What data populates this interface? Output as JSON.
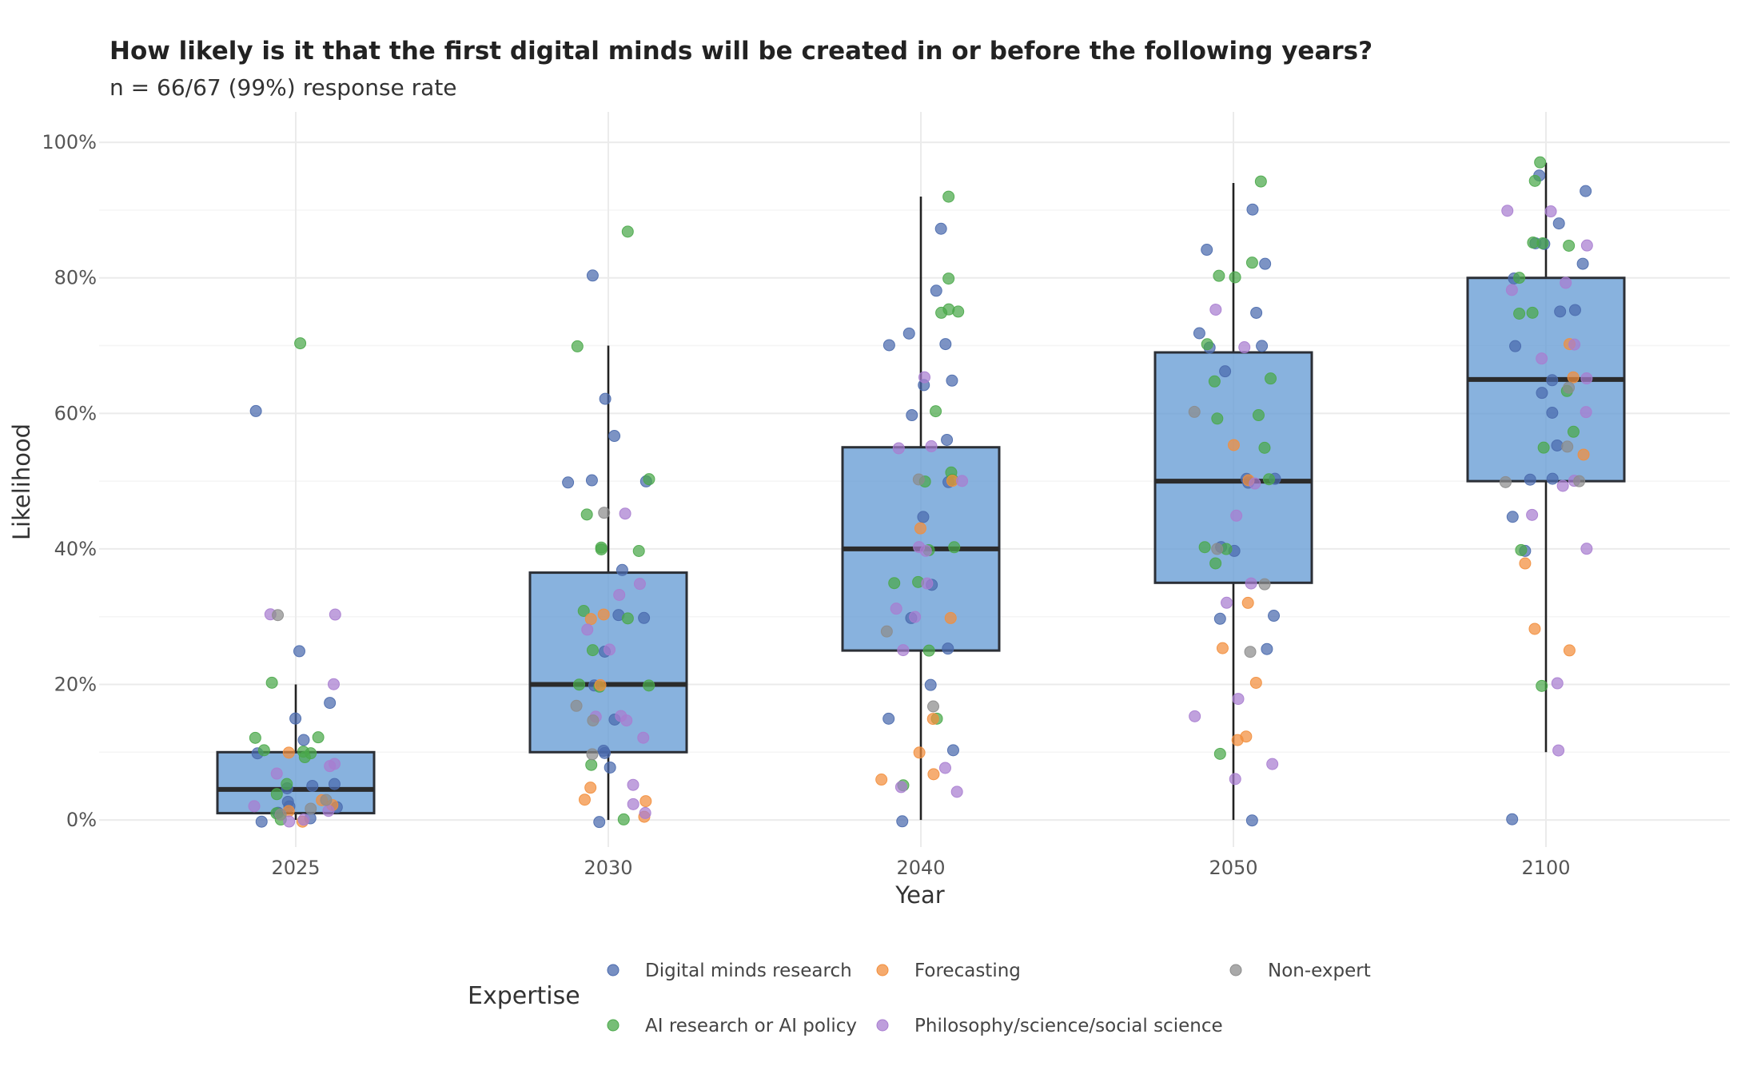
{
  "chart_data": {
    "type": "box",
    "title": "How likely is it that the first digital minds will be created in or before the following years?",
    "subtitle": "n = 66/67 (99%) response rate",
    "xlabel": "Year",
    "ylabel": "Likelihood",
    "categories": [
      "2025",
      "2030",
      "2040",
      "2050",
      "2100"
    ],
    "y_ticks": [
      "0%",
      "20%",
      "40%",
      "60%",
      "80%",
      "100%"
    ],
    "ylim": [
      -0.04,
      1.045
    ],
    "grid": true,
    "legend_position": "bottom",
    "box_color": "#6a9fd6",
    "boxes": [
      {
        "category": "2025",
        "q1": 0.01,
        "median": 0.045,
        "q3": 0.1,
        "whisker_low": 0.0,
        "whisker_high": 0.2
      },
      {
        "category": "2030",
        "q1": 0.1,
        "median": 0.2,
        "q3": 0.365,
        "whisker_low": 0.0,
        "whisker_high": 0.7
      },
      {
        "category": "2040",
        "q1": 0.25,
        "median": 0.4,
        "q3": 0.55,
        "whisker_low": 0.0,
        "whisker_high": 0.92
      },
      {
        "category": "2050",
        "q1": 0.35,
        "median": 0.5,
        "q3": 0.69,
        "whisker_low": 0.0,
        "whisker_high": 0.94
      },
      {
        "category": "2100",
        "q1": 0.5,
        "median": 0.65,
        "q3": 0.8,
        "whisker_low": 0.1,
        "whisker_high": 0.97
      }
    ],
    "legend": {
      "title": "Expertise",
      "entries": [
        {
          "key": "dm",
          "label": "Digital minds research",
          "color": "#4a6aad"
        },
        {
          "key": "fc",
          "label": "Forecasting",
          "color": "#f28e3c"
        },
        {
          "key": "ne",
          "label": "Non-expert",
          "color": "#8c8c8c"
        },
        {
          "key": "ai",
          "label": "AI research or AI policy",
          "color": "#4aa84a"
        },
        {
          "key": "ph",
          "label": "Philosophy/science/social science",
          "color": "#a87dd0"
        }
      ]
    },
    "series": [
      {
        "key": "dm",
        "name": "Digital minds research",
        "points": [
          [
            "2025",
            0.6
          ],
          [
            "2025",
            0.25
          ],
          [
            "2025",
            0.17
          ],
          [
            "2025",
            0.15
          ],
          [
            "2025",
            0.12
          ],
          [
            "2025",
            0.1
          ],
          [
            "2025",
            0.05
          ],
          [
            "2025",
            0.05
          ],
          [
            "2025",
            0.05
          ],
          [
            "2025",
            0.03
          ],
          [
            "2025",
            0.02
          ],
          [
            "2025",
            0.02
          ],
          [
            "2025",
            0.01
          ],
          [
            "2025",
            0.0
          ],
          [
            "2025",
            0.0
          ],
          [
            "2030",
            0.8
          ],
          [
            "2030",
            0.62
          ],
          [
            "2030",
            0.57
          ],
          [
            "2030",
            0.5
          ],
          [
            "2030",
            0.5
          ],
          [
            "2030",
            0.5
          ],
          [
            "2030",
            0.37
          ],
          [
            "2030",
            0.3
          ],
          [
            "2030",
            0.3
          ],
          [
            "2030",
            0.25
          ],
          [
            "2030",
            0.2
          ],
          [
            "2030",
            0.15
          ],
          [
            "2030",
            0.1
          ],
          [
            "2030",
            0.1
          ],
          [
            "2030",
            0.08
          ],
          [
            "2030",
            0.0
          ],
          [
            "2040",
            0.87
          ],
          [
            "2040",
            0.78
          ],
          [
            "2040",
            0.72
          ],
          [
            "2040",
            0.7
          ],
          [
            "2040",
            0.7
          ],
          [
            "2040",
            0.65
          ],
          [
            "2040",
            0.64
          ],
          [
            "2040",
            0.6
          ],
          [
            "2040",
            0.56
          ],
          [
            "2040",
            0.5
          ],
          [
            "2040",
            0.45
          ],
          [
            "2040",
            0.35
          ],
          [
            "2040",
            0.3
          ],
          [
            "2040",
            0.25
          ],
          [
            "2040",
            0.2
          ],
          [
            "2040",
            0.15
          ],
          [
            "2040",
            0.1
          ],
          [
            "2040",
            0.0
          ],
          [
            "2050",
            0.9
          ],
          [
            "2050",
            0.84
          ],
          [
            "2050",
            0.82
          ],
          [
            "2050",
            0.75
          ],
          [
            "2050",
            0.72
          ],
          [
            "2050",
            0.7
          ],
          [
            "2050",
            0.7
          ],
          [
            "2050",
            0.66
          ],
          [
            "2050",
            0.5
          ],
          [
            "2050",
            0.5
          ],
          [
            "2050",
            0.5
          ],
          [
            "2050",
            0.4
          ],
          [
            "2050",
            0.4
          ],
          [
            "2050",
            0.3
          ],
          [
            "2050",
            0.3
          ],
          [
            "2050",
            0.25
          ],
          [
            "2050",
            0.0
          ],
          [
            "2100",
            0.95
          ],
          [
            "2100",
            0.93
          ],
          [
            "2100",
            0.88
          ],
          [
            "2100",
            0.85
          ],
          [
            "2100",
            0.85
          ],
          [
            "2100",
            0.82
          ],
          [
            "2100",
            0.8
          ],
          [
            "2100",
            0.75
          ],
          [
            "2100",
            0.75
          ],
          [
            "2100",
            0.7
          ],
          [
            "2100",
            0.65
          ],
          [
            "2100",
            0.63
          ],
          [
            "2100",
            0.6
          ],
          [
            "2100",
            0.55
          ],
          [
            "2100",
            0.5
          ],
          [
            "2100",
            0.5
          ],
          [
            "2100",
            0.45
          ],
          [
            "2100",
            0.4
          ],
          [
            "2100",
            0.0
          ]
        ]
      },
      {
        "key": "ai",
        "name": "AI research or AI policy",
        "points": [
          [
            "2025",
            0.7
          ],
          [
            "2025",
            0.2
          ],
          [
            "2025",
            0.12
          ],
          [
            "2025",
            0.12
          ],
          [
            "2025",
            0.1
          ],
          [
            "2025",
            0.1
          ],
          [
            "2025",
            0.1
          ],
          [
            "2025",
            0.09
          ],
          [
            "2025",
            0.05
          ],
          [
            "2025",
            0.04
          ],
          [
            "2025",
            0.01
          ],
          [
            "2025",
            0.0
          ],
          [
            "2030",
            0.87
          ],
          [
            "2030",
            0.7
          ],
          [
            "2030",
            0.5
          ],
          [
            "2030",
            0.45
          ],
          [
            "2030",
            0.4
          ],
          [
            "2030",
            0.4
          ],
          [
            "2030",
            0.4
          ],
          [
            "2030",
            0.31
          ],
          [
            "2030",
            0.3
          ],
          [
            "2030",
            0.25
          ],
          [
            "2030",
            0.2
          ],
          [
            "2030",
            0.2
          ],
          [
            "2030",
            0.2
          ],
          [
            "2030",
            0.08
          ],
          [
            "2030",
            0.0
          ],
          [
            "2040",
            0.92
          ],
          [
            "2040",
            0.8
          ],
          [
            "2040",
            0.75
          ],
          [
            "2040",
            0.75
          ],
          [
            "2040",
            0.75
          ],
          [
            "2040",
            0.6
          ],
          [
            "2040",
            0.51
          ],
          [
            "2040",
            0.5
          ],
          [
            "2040",
            0.5
          ],
          [
            "2040",
            0.4
          ],
          [
            "2040",
            0.4
          ],
          [
            "2040",
            0.35
          ],
          [
            "2040",
            0.35
          ],
          [
            "2040",
            0.25
          ],
          [
            "2040",
            0.15
          ],
          [
            "2040",
            0.05
          ],
          [
            "2050",
            0.94
          ],
          [
            "2050",
            0.82
          ],
          [
            "2050",
            0.8
          ],
          [
            "2050",
            0.8
          ],
          [
            "2050",
            0.7
          ],
          [
            "2050",
            0.65
          ],
          [
            "2050",
            0.65
          ],
          [
            "2050",
            0.6
          ],
          [
            "2050",
            0.59
          ],
          [
            "2050",
            0.55
          ],
          [
            "2050",
            0.5
          ],
          [
            "2050",
            0.4
          ],
          [
            "2050",
            0.4
          ],
          [
            "2050",
            0.38
          ],
          [
            "2050",
            0.1
          ],
          [
            "2100",
            0.97
          ],
          [
            "2100",
            0.94
          ],
          [
            "2100",
            0.85
          ],
          [
            "2100",
            0.85
          ],
          [
            "2100",
            0.85
          ],
          [
            "2100",
            0.8
          ],
          [
            "2100",
            0.75
          ],
          [
            "2100",
            0.75
          ],
          [
            "2100",
            0.63
          ],
          [
            "2100",
            0.57
          ],
          [
            "2100",
            0.55
          ],
          [
            "2100",
            0.4
          ],
          [
            "2100",
            0.2
          ]
        ]
      },
      {
        "key": "fc",
        "name": "Forecasting",
        "points": [
          [
            "2025",
            0.1
          ],
          [
            "2025",
            0.03
          ],
          [
            "2025",
            0.02
          ],
          [
            "2025",
            0.01
          ],
          [
            "2025",
            0.0
          ],
          [
            "2030",
            0.3
          ],
          [
            "2030",
            0.3
          ],
          [
            "2030",
            0.2
          ],
          [
            "2030",
            0.05
          ],
          [
            "2030",
            0.03
          ],
          [
            "2030",
            0.03
          ],
          [
            "2030",
            0.005
          ],
          [
            "2040",
            0.5
          ],
          [
            "2040",
            0.43
          ],
          [
            "2040",
            0.3
          ],
          [
            "2040",
            0.15
          ],
          [
            "2040",
            0.1
          ],
          [
            "2040",
            0.07
          ],
          [
            "2040",
            0.06
          ],
          [
            "2050",
            0.55
          ],
          [
            "2050",
            0.5
          ],
          [
            "2050",
            0.32
          ],
          [
            "2050",
            0.25
          ],
          [
            "2050",
            0.2
          ],
          [
            "2050",
            0.12
          ],
          [
            "2050",
            0.12
          ],
          [
            "2100",
            0.7
          ],
          [
            "2100",
            0.65
          ],
          [
            "2100",
            0.54
          ],
          [
            "2100",
            0.38
          ],
          [
            "2100",
            0.28
          ],
          [
            "2100",
            0.25
          ]
        ]
      },
      {
        "key": "ph",
        "name": "Philosophy/science/social science",
        "points": [
          [
            "2025",
            0.3
          ],
          [
            "2025",
            0.3
          ],
          [
            "2025",
            0.2
          ],
          [
            "2025",
            0.08
          ],
          [
            "2025",
            0.08
          ],
          [
            "2025",
            0.07
          ],
          [
            "2025",
            0.02
          ],
          [
            "2025",
            0.01
          ],
          [
            "2025",
            0.0
          ],
          [
            "2025",
            0.0
          ],
          [
            "2030",
            0.45
          ],
          [
            "2030",
            0.35
          ],
          [
            "2030",
            0.33
          ],
          [
            "2030",
            0.28
          ],
          [
            "2030",
            0.25
          ],
          [
            "2030",
            0.15
          ],
          [
            "2030",
            0.15
          ],
          [
            "2030",
            0.15
          ],
          [
            "2030",
            0.12
          ],
          [
            "2030",
            0.05
          ],
          [
            "2030",
            0.02
          ],
          [
            "2030",
            0.01
          ],
          [
            "2040",
            0.65
          ],
          [
            "2040",
            0.55
          ],
          [
            "2040",
            0.55
          ],
          [
            "2040",
            0.5
          ],
          [
            "2040",
            0.4
          ],
          [
            "2040",
            0.4
          ],
          [
            "2040",
            0.35
          ],
          [
            "2040",
            0.31
          ],
          [
            "2040",
            0.3
          ],
          [
            "2040",
            0.25
          ],
          [
            "2040",
            0.08
          ],
          [
            "2040",
            0.05
          ],
          [
            "2040",
            0.04
          ],
          [
            "2050",
            0.75
          ],
          [
            "2050",
            0.7
          ],
          [
            "2050",
            0.5
          ],
          [
            "2050",
            0.45
          ],
          [
            "2050",
            0.35
          ],
          [
            "2050",
            0.32
          ],
          [
            "2050",
            0.18
          ],
          [
            "2050",
            0.15
          ],
          [
            "2050",
            0.08
          ],
          [
            "2050",
            0.06
          ],
          [
            "2100",
            0.9
          ],
          [
            "2100",
            0.9
          ],
          [
            "2100",
            0.85
          ],
          [
            "2100",
            0.79
          ],
          [
            "2100",
            0.78
          ],
          [
            "2100",
            0.7
          ],
          [
            "2100",
            0.68
          ],
          [
            "2100",
            0.65
          ],
          [
            "2100",
            0.6
          ],
          [
            "2100",
            0.5
          ],
          [
            "2100",
            0.49
          ],
          [
            "2100",
            0.45
          ],
          [
            "2100",
            0.4
          ],
          [
            "2100",
            0.2
          ],
          [
            "2100",
            0.1
          ]
        ]
      },
      {
        "key": "ne",
        "name": "Non-expert",
        "points": [
          [
            "2025",
            0.3
          ],
          [
            "2025",
            0.03
          ],
          [
            "2025",
            0.02
          ],
          [
            "2025",
            0.01
          ],
          [
            "2030",
            0.45
          ],
          [
            "2030",
            0.17
          ],
          [
            "2030",
            0.15
          ],
          [
            "2030",
            0.1
          ],
          [
            "2040",
            0.5
          ],
          [
            "2040",
            0.28
          ],
          [
            "2040",
            0.17
          ],
          [
            "2050",
            0.6
          ],
          [
            "2050",
            0.4
          ],
          [
            "2050",
            0.35
          ],
          [
            "2050",
            0.25
          ],
          [
            "2100",
            0.64
          ],
          [
            "2100",
            0.55
          ],
          [
            "2100",
            0.5
          ],
          [
            "2100",
            0.5
          ]
        ]
      }
    ]
  }
}
